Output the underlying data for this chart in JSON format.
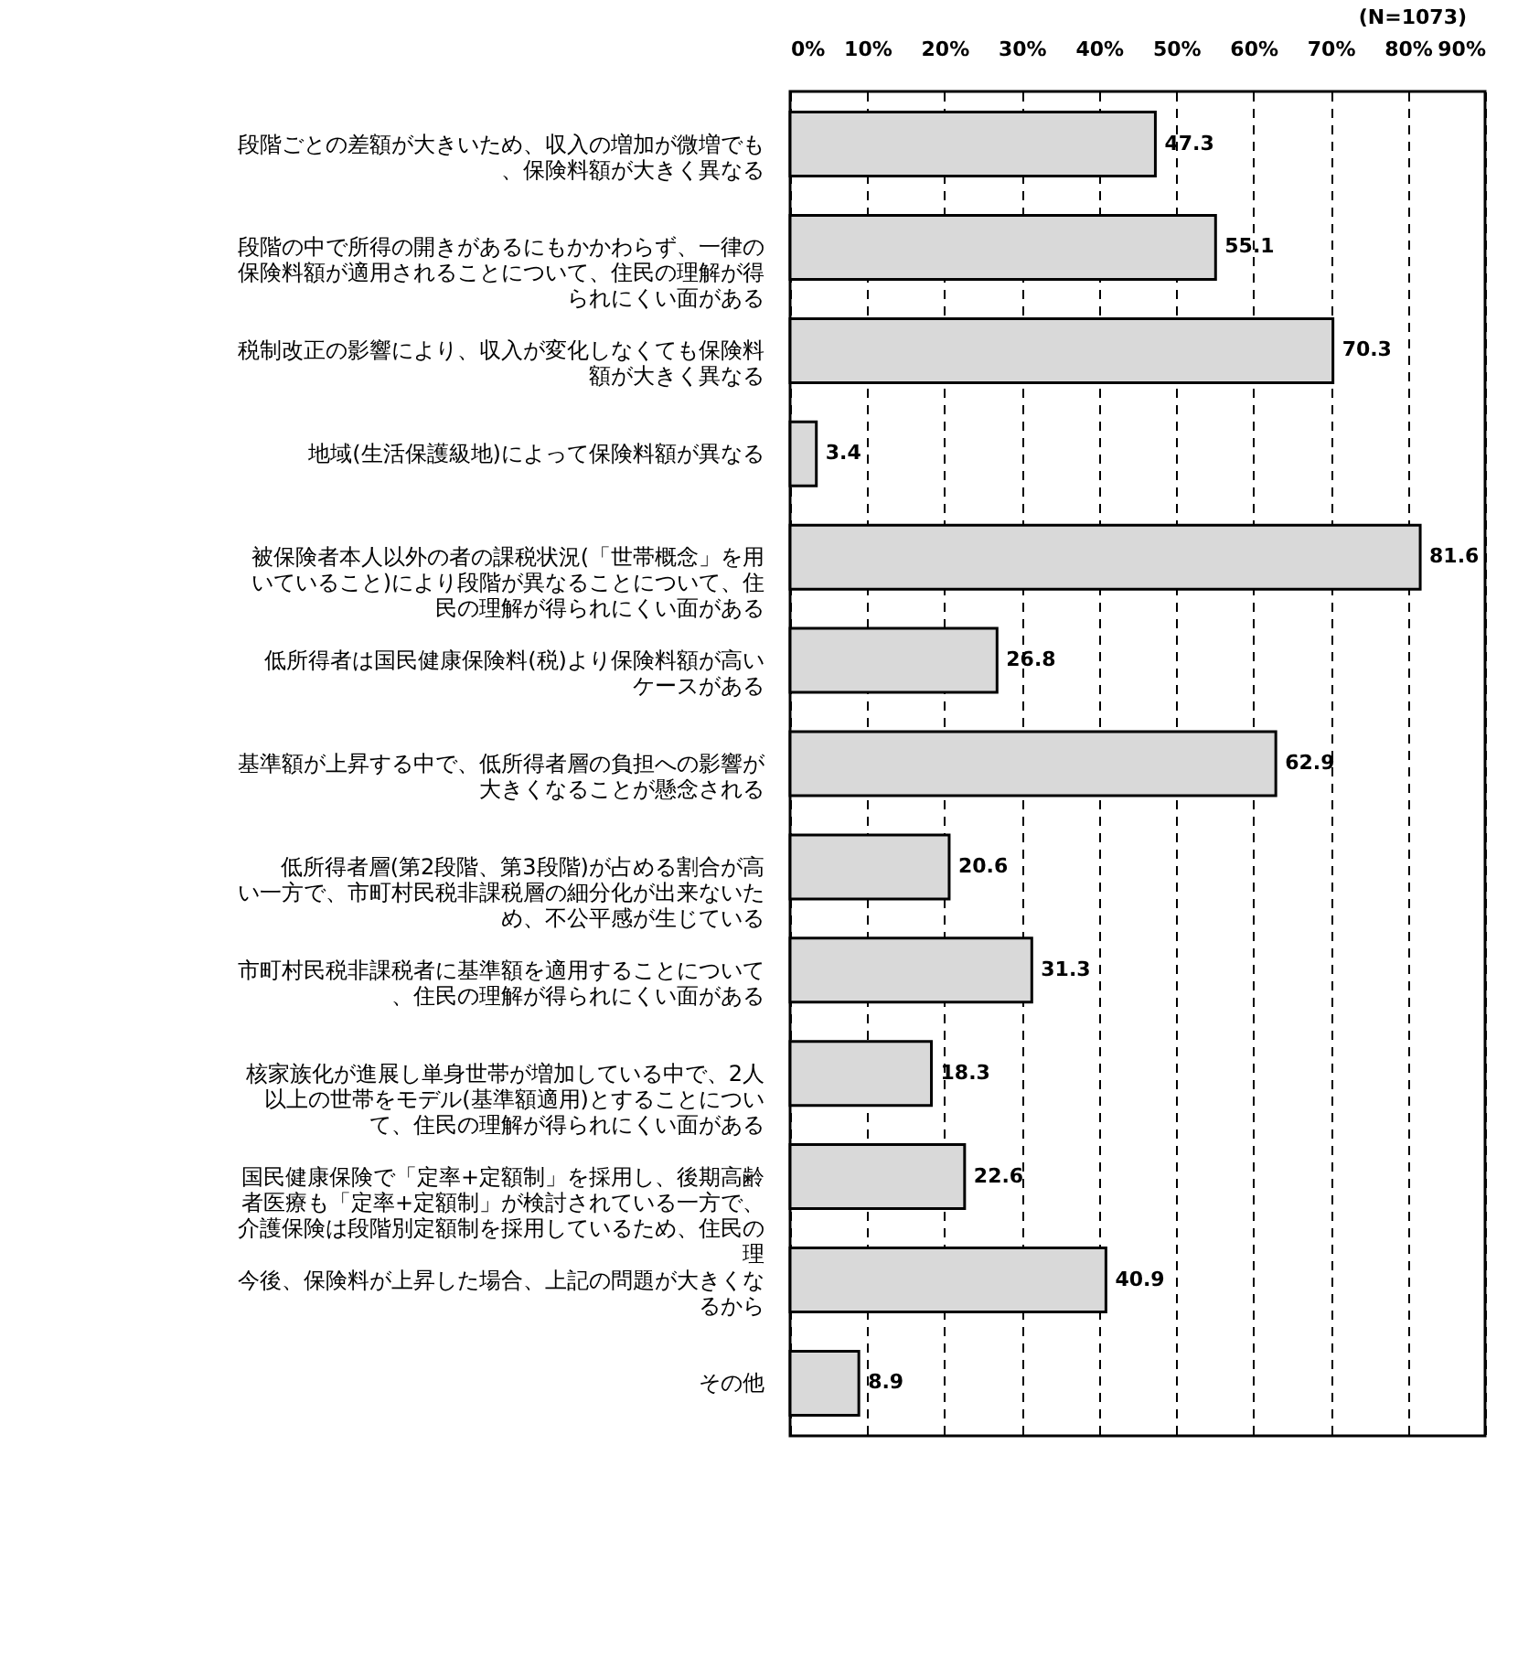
{
  "chart_data": {
    "type": "bar",
    "orientation": "horizontal",
    "categories": [
      "段階ごとの差額が大きいため、収入の増加が微増でも、保険料額が大きく異なる",
      "段階の中で所得の開きがあるにもかかわらず、一律の保険料額が適用されることについて、住民の理解が得られにくい面がある",
      "税制改正の影響により、収入が変化しなくても保険料額が大きく異なる",
      "地域(生活保護級地)によって保険料額が異なる",
      "被保険者本人以外の者の課税状況(「世帯概念」を用いていること)により段階が異なることについて、住民の理解が得られにくい面がある",
      "低所得者は国民健康保険料(税)より保険料額が高いケースがある",
      "基準額が上昇する中で、低所得者層の負担への影響が大きくなることが懸念される",
      "低所得者層(第2段階、第3段階)が占める割合が高い一方で、市町村民税非課税層の細分化が出来ないため、不公平感が生じている",
      "市町村民税非課税者に基準額を適用することについて、住民の理解が得られにくい面がある",
      "核家族化が進展し単身世帯が増加している中で、2人以上の世帯をモデル(基準額適用)とすることについて、住民の理解が得られにくい面がある",
      "国民健康保険で「定率+定額制」を採用し、後期高齢者医療も「定率+定額制」が検討されている一方で、介護保険は段階別定額制を採用しているため、住民の理",
      "今後、保険料が上昇した場合、上記の問題が大きくなるから",
      "その他"
    ],
    "values": [
      47.3,
      55.1,
      70.3,
      3.4,
      81.6,
      26.8,
      62.9,
      20.6,
      31.3,
      18.3,
      22.6,
      40.9,
      8.9
    ],
    "color": "#d9d9d9",
    "data_labels": true,
    "xlim": [
      0,
      90
    ],
    "xticks": [
      {
        "value": 0,
        "label": "0%"
      },
      {
        "value": 10,
        "label": "10%"
      },
      {
        "value": 20,
        "label": "20%"
      },
      {
        "value": 30,
        "label": "30%"
      },
      {
        "value": 40,
        "label": "40%"
      },
      {
        "value": 50,
        "label": "50%"
      },
      {
        "value": 60,
        "label": "60%"
      },
      {
        "value": 70,
        "label": "70%"
      },
      {
        "value": 80,
        "label": "80%"
      },
      {
        "value": 90,
        "label": "90%"
      }
    ],
    "grid": "x",
    "annotations": [
      "(N=1073)"
    ]
  }
}
